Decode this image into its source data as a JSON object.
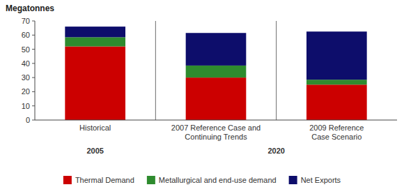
{
  "chart_data": {
    "type": "bar",
    "stacked": true,
    "y_label": "Megatonnes",
    "categories": [
      "Historical",
      "2007 Reference Case and\nContinuing Trends",
      "2009 Reference\nCase Scenario"
    ],
    "annotations": [
      "2005",
      "2020"
    ],
    "series": [
      {
        "name": "Thermal Demand",
        "color": "#cc0000",
        "values": [
          52.0,
          30.0,
          25.0
        ]
      },
      {
        "name": "Metallurgical and end-use demand",
        "color": "#2e8b2e",
        "values": [
          6.5,
          8.5,
          3.5
        ]
      },
      {
        "name": "Net Exports",
        "color": "#0d0d6b",
        "values": [
          7.5,
          23.0,
          34.0
        ]
      }
    ],
    "ylim": [
      0,
      70
    ],
    "yticks": [
      0,
      10,
      20,
      30,
      40,
      50,
      60,
      70
    ],
    "grid": false,
    "legend": "bottom"
  }
}
